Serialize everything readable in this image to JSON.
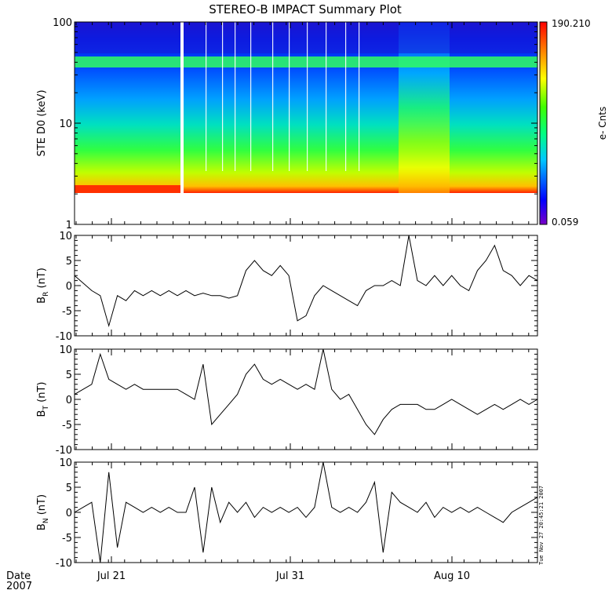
{
  "title": "STEREO-B IMPACT Summary Plot",
  "date_label": "Date",
  "year_label": "2007",
  "timestamp": "Tue Nov 27 20:45:21 2007",
  "x_ticks": [
    "Jul 21",
    "Jul 31",
    "Aug 10"
  ],
  "chart_data": [
    {
      "type": "heatmap",
      "ylabel": "STE D0 (keV)",
      "y_scale": "log",
      "ylim": [
        1,
        100
      ],
      "y_ticks": [
        "1",
        "10",
        "100"
      ],
      "colorbar": {
        "label": "e- Cnts",
        "max": "190.210",
        "min": "0.059",
        "colormap": "rainbow"
      },
      "x_tick_labels": [
        "Jul 21",
        "Jul 31",
        "Aug 10"
      ]
    },
    {
      "type": "line",
      "ylabel": "B_R (nT)",
      "ylabel_main": "B",
      "ylabel_sub": "R",
      "ylabel_unit": " (nT)",
      "ylim": [
        -10,
        10
      ],
      "y_ticks": [
        "-10",
        "-5",
        "0",
        "5",
        "10"
      ],
      "x": [
        0,
        0.5,
        1,
        1.5,
        2,
        2.5,
        3,
        3.5,
        4,
        4.5,
        5,
        5.5,
        6,
        6.5,
        7,
        7.5,
        8,
        8.5,
        9,
        9.5,
        10,
        10.5,
        11,
        11.5,
        12,
        12.5,
        13,
        13.5,
        14,
        14.5,
        15,
        15.5,
        16,
        16.5,
        17,
        17.5,
        18,
        18.5,
        19,
        19.5,
        20,
        20.5,
        21,
        21.5,
        22,
        22.5,
        23,
        23.5,
        24,
        24.5,
        25,
        25.5,
        26,
        26.5,
        27
      ],
      "y": [
        2,
        0.5,
        -1,
        -2,
        -8,
        -2,
        -3,
        -1,
        -2,
        -1,
        -2,
        -1,
        -2,
        -1,
        -2,
        -1.5,
        -2,
        -2,
        -2.5,
        -2,
        3,
        5,
        3,
        2,
        4,
        2,
        -7,
        -6,
        -2,
        0,
        -1,
        -2,
        -3,
        -4,
        -1,
        0,
        0,
        1,
        0,
        10,
        1,
        0,
        2,
        0,
        2,
        0,
        -1,
        3,
        5,
        8,
        3,
        2,
        0,
        2,
        1
      ],
      "x_tick_labels": [
        "Jul 21",
        "Jul 31",
        "Aug 10"
      ]
    },
    {
      "type": "line",
      "ylabel": "B_T (nT)",
      "ylabel_main": "B",
      "ylabel_sub": "T",
      "ylabel_unit": " (nT)",
      "ylim": [
        -10,
        10
      ],
      "y_ticks": [
        "-10",
        "-5",
        "0",
        "5",
        "10"
      ],
      "x": [
        0,
        0.5,
        1,
        1.5,
        2,
        2.5,
        3,
        3.5,
        4,
        4.5,
        5,
        5.5,
        6,
        6.5,
        7,
        7.5,
        8,
        8.5,
        9,
        9.5,
        10,
        10.5,
        11,
        11.5,
        12,
        12.5,
        13,
        13.5,
        14,
        14.5,
        15,
        15.5,
        16,
        16.5,
        17,
        17.5,
        18,
        18.5,
        19,
        19.5,
        20,
        20.5,
        21,
        21.5,
        22,
        22.5,
        23,
        23.5,
        24,
        24.5,
        25,
        25.5,
        26,
        26.5,
        27
      ],
      "y": [
        1,
        2,
        3,
        9,
        4,
        3,
        2,
        3,
        2,
        2,
        2,
        2,
        2,
        1,
        0,
        7,
        -5,
        -3,
        -1,
        1,
        5,
        7,
        4,
        3,
        4,
        3,
        2,
        3,
        2,
        10,
        2,
        0,
        1,
        -2,
        -5,
        -7,
        -4,
        -2,
        -1,
        -1,
        -1,
        -2,
        -2,
        -1,
        0,
        -1,
        -2,
        -3,
        -2,
        -1,
        -2,
        -1,
        0,
        -1,
        0
      ],
      "x_tick_labels": [
        "Jul 21",
        "Jul 31",
        "Aug 10"
      ]
    },
    {
      "type": "line",
      "ylabel": "B_N (nT)",
      "ylabel_main": "B",
      "ylabel_sub": "N",
      "ylabel_unit": " (nT)",
      "ylim": [
        -10,
        10
      ],
      "y_ticks": [
        "-10",
        "-5",
        "0",
        "5",
        "10"
      ],
      "x": [
        0,
        0.5,
        1,
        1.5,
        2,
        2.5,
        3,
        3.5,
        4,
        4.5,
        5,
        5.5,
        6,
        6.5,
        7,
        7.5,
        8,
        8.5,
        9,
        9.5,
        10,
        10.5,
        11,
        11.5,
        12,
        12.5,
        13,
        13.5,
        14,
        14.5,
        15,
        15.5,
        16,
        16.5,
        17,
        17.5,
        18,
        18.5,
        19,
        19.5,
        20,
        20.5,
        21,
        21.5,
        22,
        22.5,
        23,
        23.5,
        24,
        24.5,
        25,
        25.5,
        26,
        26.5,
        27
      ],
      "y": [
        0,
        1,
        2,
        -10,
        8,
        -7,
        2,
        1,
        0,
        1,
        0,
        1,
        0,
        0,
        5,
        -8,
        5,
        -2,
        2,
        0,
        2,
        -1,
        1,
        0,
        1,
        0,
        1,
        -1,
        1,
        10,
        1,
        0,
        1,
        0,
        2,
        6,
        -8,
        4,
        2,
        1,
        0,
        2,
        -1,
        1,
        0,
        1,
        0,
        1,
        0,
        -1,
        -2,
        0,
        1,
        2,
        3
      ],
      "x_tick_labels": [
        "Jul 21",
        "Jul 31",
        "Aug 10"
      ]
    }
  ]
}
